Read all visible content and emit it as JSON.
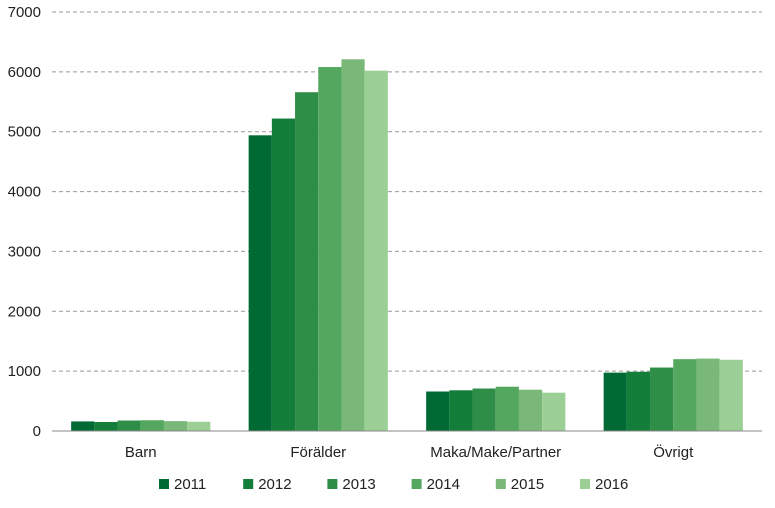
{
  "chart_data": {
    "type": "bar",
    "categories": [
      "Barn",
      "Förälder",
      "Maka/Make/Partner",
      "Övrigt"
    ],
    "series": [
      {
        "name": "2011",
        "color": "#006a35",
        "values": [
          160,
          4940,
          660,
          975
        ]
      },
      {
        "name": "2012",
        "color": "#127e3a",
        "values": [
          150,
          5220,
          680,
          990
        ]
      },
      {
        "name": "2013",
        "color": "#2e8d47",
        "values": [
          175,
          5660,
          710,
          1060
        ]
      },
      {
        "name": "2014",
        "color": "#53a75f",
        "values": [
          180,
          6080,
          740,
          1200
        ]
      },
      {
        "name": "2015",
        "color": "#79b878",
        "values": [
          165,
          6210,
          690,
          1210
        ]
      },
      {
        "name": "2016",
        "color": "#9ccf96",
        "values": [
          155,
          6020,
          640,
          1190
        ]
      }
    ],
    "ylim": [
      0,
      7000
    ],
    "yticks": [
      0,
      1000,
      2000,
      3000,
      4000,
      5000,
      6000,
      7000
    ],
    "grid": true,
    "legend_position": "bottom"
  }
}
